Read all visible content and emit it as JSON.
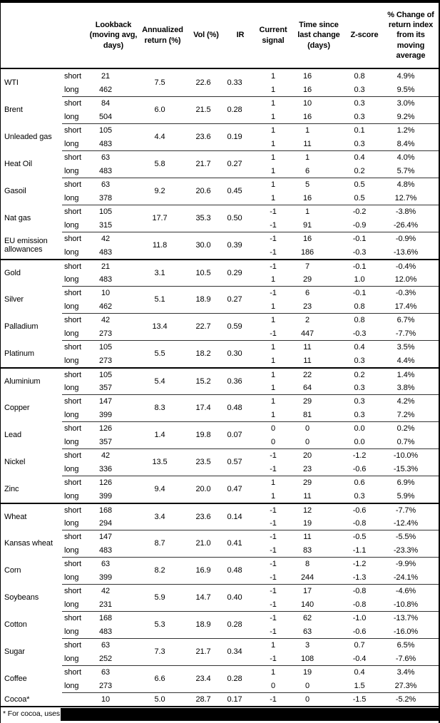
{
  "table": {
    "headers": {
      "lookback": "Lookback (moving avg, days)",
      "annualized": "Annualized return (%)",
      "vol": "Vol (%)",
      "ir": "IR",
      "signal": "Current signal",
      "time": "Time since last change (days)",
      "zscore": "Z-score",
      "pct": "% Change of return index from its moving average"
    },
    "sections": [
      {
        "groups": [
          {
            "name": "WTI",
            "annualized": "7.5",
            "vol": "22.6",
            "ir": "0.33",
            "rows": [
              {
                "side": "short",
                "lookback": "21",
                "signal": "1",
                "time": "16",
                "zscore": "0.8",
                "pct": "4.9%"
              },
              {
                "side": "long",
                "lookback": "462",
                "signal": "1",
                "time": "16",
                "zscore": "0.3",
                "pct": "9.5%"
              }
            ]
          },
          {
            "name": "Brent",
            "annualized": "6.0",
            "vol": "21.5",
            "ir": "0.28",
            "rows": [
              {
                "side": "short",
                "lookback": "84",
                "signal": "1",
                "time": "10",
                "zscore": "0.3",
                "pct": "3.0%"
              },
              {
                "side": "long",
                "lookback": "504",
                "signal": "1",
                "time": "16",
                "zscore": "0.3",
                "pct": "9.2%"
              }
            ]
          },
          {
            "name": "Unleaded gas",
            "annualized": "4.4",
            "vol": "23.6",
            "ir": "0.19",
            "rows": [
              {
                "side": "short",
                "lookback": "105",
                "signal": "1",
                "time": "1",
                "zscore": "0.1",
                "pct": "1.2%"
              },
              {
                "side": "long",
                "lookback": "483",
                "signal": "1",
                "time": "11",
                "zscore": "0.3",
                "pct": "8.4%"
              }
            ]
          },
          {
            "name": "Heat Oil",
            "annualized": "5.8",
            "vol": "21.7",
            "ir": "0.27",
            "rows": [
              {
                "side": "short",
                "lookback": "63",
                "signal": "1",
                "time": "1",
                "zscore": "0.4",
                "pct": "4.0%"
              },
              {
                "side": "long",
                "lookback": "483",
                "signal": "1",
                "time": "6",
                "zscore": "0.2",
                "pct": "5.7%"
              }
            ]
          },
          {
            "name": "Gasoil",
            "annualized": "9.2",
            "vol": "20.6",
            "ir": "0.45",
            "rows": [
              {
                "side": "short",
                "lookback": "63",
                "signal": "1",
                "time": "5",
                "zscore": "0.5",
                "pct": "4.8%"
              },
              {
                "side": "long",
                "lookback": "378",
                "signal": "1",
                "time": "16",
                "zscore": "0.5",
                "pct": "12.7%"
              }
            ]
          },
          {
            "name": "Nat gas",
            "annualized": "17.7",
            "vol": "35.3",
            "ir": "0.50",
            "rows": [
              {
                "side": "short",
                "lookback": "105",
                "signal": "-1",
                "time": "1",
                "zscore": "-0.2",
                "pct": "-3.8%"
              },
              {
                "side": "long",
                "lookback": "315",
                "signal": "-1",
                "time": "91",
                "zscore": "-0.9",
                "pct": "-26.4%"
              }
            ]
          },
          {
            "name": "EU emission allowances",
            "annualized": "11.8",
            "vol": "30.0",
            "ir": "0.39",
            "rows": [
              {
                "side": "short",
                "lookback": "42",
                "signal": "-1",
                "time": "16",
                "zscore": "-0.1",
                "pct": "-0.9%"
              },
              {
                "side": "long",
                "lookback": "483",
                "signal": "-1",
                "time": "186",
                "zscore": "-0.3",
                "pct": "-13.6%"
              }
            ]
          }
        ]
      },
      {
        "groups": [
          {
            "name": "Gold",
            "annualized": "3.1",
            "vol": "10.5",
            "ir": "0.29",
            "rows": [
              {
                "side": "short",
                "lookback": "21",
                "signal": "-1",
                "time": "7",
                "zscore": "-0.1",
                "pct": "-0.4%"
              },
              {
                "side": "long",
                "lookback": "483",
                "signal": "1",
                "time": "29",
                "zscore": "1.0",
                "pct": "12.0%"
              }
            ]
          },
          {
            "name": "Silver",
            "annualized": "5.1",
            "vol": "18.9",
            "ir": "0.27",
            "rows": [
              {
                "side": "short",
                "lookback": "10",
                "signal": "-1",
                "time": "6",
                "zscore": "-0.1",
                "pct": "-0.3%"
              },
              {
                "side": "long",
                "lookback": "462",
                "signal": "1",
                "time": "23",
                "zscore": "0.8",
                "pct": "17.4%"
              }
            ]
          },
          {
            "name": "Palladium",
            "annualized": "13.4",
            "vol": "22.7",
            "ir": "0.59",
            "rows": [
              {
                "side": "short",
                "lookback": "42",
                "signal": "1",
                "time": "2",
                "zscore": "0.8",
                "pct": "6.7%"
              },
              {
                "side": "long",
                "lookback": "273",
                "signal": "-1",
                "time": "447",
                "zscore": "-0.3",
                "pct": "-7.7%"
              }
            ]
          },
          {
            "name": "Platinum",
            "annualized": "5.5",
            "vol": "18.2",
            "ir": "0.30",
            "rows": [
              {
                "side": "short",
                "lookback": "105",
                "signal": "1",
                "time": "11",
                "zscore": "0.4",
                "pct": "3.5%"
              },
              {
                "side": "long",
                "lookback": "273",
                "signal": "1",
                "time": "11",
                "zscore": "0.3",
                "pct": "4.4%"
              }
            ]
          }
        ]
      },
      {
        "groups": [
          {
            "name": "Aluminium",
            "annualized": "5.4",
            "vol": "15.2",
            "ir": "0.36",
            "rows": [
              {
                "side": "short",
                "lookback": "105",
                "signal": "1",
                "time": "22",
                "zscore": "0.2",
                "pct": "1.4%"
              },
              {
                "side": "long",
                "lookback": "357",
                "signal": "1",
                "time": "64",
                "zscore": "0.3",
                "pct": "3.8%"
              }
            ]
          },
          {
            "name": "Copper",
            "annualized": "8.3",
            "vol": "17.4",
            "ir": "0.48",
            "rows": [
              {
                "side": "short",
                "lookback": "147",
                "signal": "1",
                "time": "29",
                "zscore": "0.3",
                "pct": "4.2%"
              },
              {
                "side": "long",
                "lookback": "399",
                "signal": "1",
                "time": "81",
                "zscore": "0.3",
                "pct": "7.2%"
              }
            ]
          },
          {
            "name": "Lead",
            "annualized": "1.4",
            "vol": "19.8",
            "ir": "0.07",
            "rows": [
              {
                "side": "short",
                "lookback": "126",
                "signal": "0",
                "time": "0",
                "zscore": "0.0",
                "pct": "0.2%"
              },
              {
                "side": "long",
                "lookback": "357",
                "signal": "0",
                "time": "0",
                "zscore": "0.0",
                "pct": "0.7%"
              }
            ]
          },
          {
            "name": "Nickel",
            "annualized": "13.5",
            "vol": "23.5",
            "ir": "0.57",
            "rows": [
              {
                "side": "short",
                "lookback": "42",
                "signal": "-1",
                "time": "20",
                "zscore": "-1.2",
                "pct": "-10.0%"
              },
              {
                "side": "long",
                "lookback": "336",
                "signal": "-1",
                "time": "23",
                "zscore": "-0.6",
                "pct": "-15.3%"
              }
            ]
          },
          {
            "name": "Zinc",
            "annualized": "9.4",
            "vol": "20.0",
            "ir": "0.47",
            "rows": [
              {
                "side": "short",
                "lookback": "126",
                "signal": "1",
                "time": "29",
                "zscore": "0.6",
                "pct": "6.9%"
              },
              {
                "side": "long",
                "lookback": "399",
                "signal": "1",
                "time": "11",
                "zscore": "0.3",
                "pct": "5.9%"
              }
            ]
          }
        ]
      },
      {
        "groups": [
          {
            "name": "Wheat",
            "annualized": "3.4",
            "vol": "23.6",
            "ir": "0.14",
            "rows": [
              {
                "side": "short",
                "lookback": "168",
                "signal": "-1",
                "time": "12",
                "zscore": "-0.6",
                "pct": "-7.7%"
              },
              {
                "side": "long",
                "lookback": "294",
                "signal": "-1",
                "time": "19",
                "zscore": "-0.8",
                "pct": "-12.4%"
              }
            ]
          },
          {
            "name": "Kansas wheat",
            "annualized": "8.7",
            "vol": "21.0",
            "ir": "0.41",
            "rows": [
              {
                "side": "short",
                "lookback": "147",
                "signal": "-1",
                "time": "11",
                "zscore": "-0.5",
                "pct": "-5.5%"
              },
              {
                "side": "long",
                "lookback": "483",
                "signal": "-1",
                "time": "83",
                "zscore": "-1.1",
                "pct": "-23.3%"
              }
            ]
          },
          {
            "name": "Corn",
            "annualized": "8.2",
            "vol": "16.9",
            "ir": "0.48",
            "rows": [
              {
                "side": "short",
                "lookback": "63",
                "signal": "-1",
                "time": "8",
                "zscore": "-1.2",
                "pct": "-9.9%"
              },
              {
                "side": "long",
                "lookback": "399",
                "signal": "-1",
                "time": "244",
                "zscore": "-1.3",
                "pct": "-24.1%"
              }
            ]
          },
          {
            "name": "Soybeans",
            "annualized": "5.9",
            "vol": "14.7",
            "ir": "0.40",
            "rows": [
              {
                "side": "short",
                "lookback": "42",
                "signal": "-1",
                "time": "17",
                "zscore": "-0.8",
                "pct": "-4.6%"
              },
              {
                "side": "long",
                "lookback": "231",
                "signal": "-1",
                "time": "140",
                "zscore": "-0.8",
                "pct": "-10.8%"
              }
            ]
          },
          {
            "name": "Cotton",
            "annualized": "5.3",
            "vol": "18.9",
            "ir": "0.28",
            "rows": [
              {
                "side": "short",
                "lookback": "168",
                "signal": "-1",
                "time": "62",
                "zscore": "-1.0",
                "pct": "-13.7%"
              },
              {
                "side": "long",
                "lookback": "483",
                "signal": "-1",
                "time": "63",
                "zscore": "-0.6",
                "pct": "-16.0%"
              }
            ]
          },
          {
            "name": "Sugar",
            "annualized": "7.3",
            "vol": "21.7",
            "ir": "0.34",
            "rows": [
              {
                "side": "short",
                "lookback": "63",
                "signal": "1",
                "time": "3",
                "zscore": "0.7",
                "pct": "6.5%"
              },
              {
                "side": "long",
                "lookback": "252",
                "signal": "-1",
                "time": "108",
                "zscore": "-0.4",
                "pct": "-7.6%"
              }
            ]
          },
          {
            "name": "Coffee",
            "annualized": "6.6",
            "vol": "23.4",
            "ir": "0.28",
            "rows": [
              {
                "side": "short",
                "lookback": "63",
                "signal": "1",
                "time": "19",
                "zscore": "0.4",
                "pct": "3.4%"
              },
              {
                "side": "long",
                "lookback": "273",
                "signal": "0",
                "time": "0",
                "zscore": "1.5",
                "pct": "27.3%"
              }
            ]
          },
          {
            "name": "Cocoa*",
            "annualized": "5.0",
            "vol": "28.7",
            "ir": "0.17",
            "rows": [
              {
                "side": "",
                "lookback": "10",
                "signal": "-1",
                "time": "0",
                "zscore": "-1.5",
                "pct": "-5.2%"
              }
            ]
          }
        ]
      }
    ],
    "footnote_text": "* For cocoa, uses o"
  }
}
